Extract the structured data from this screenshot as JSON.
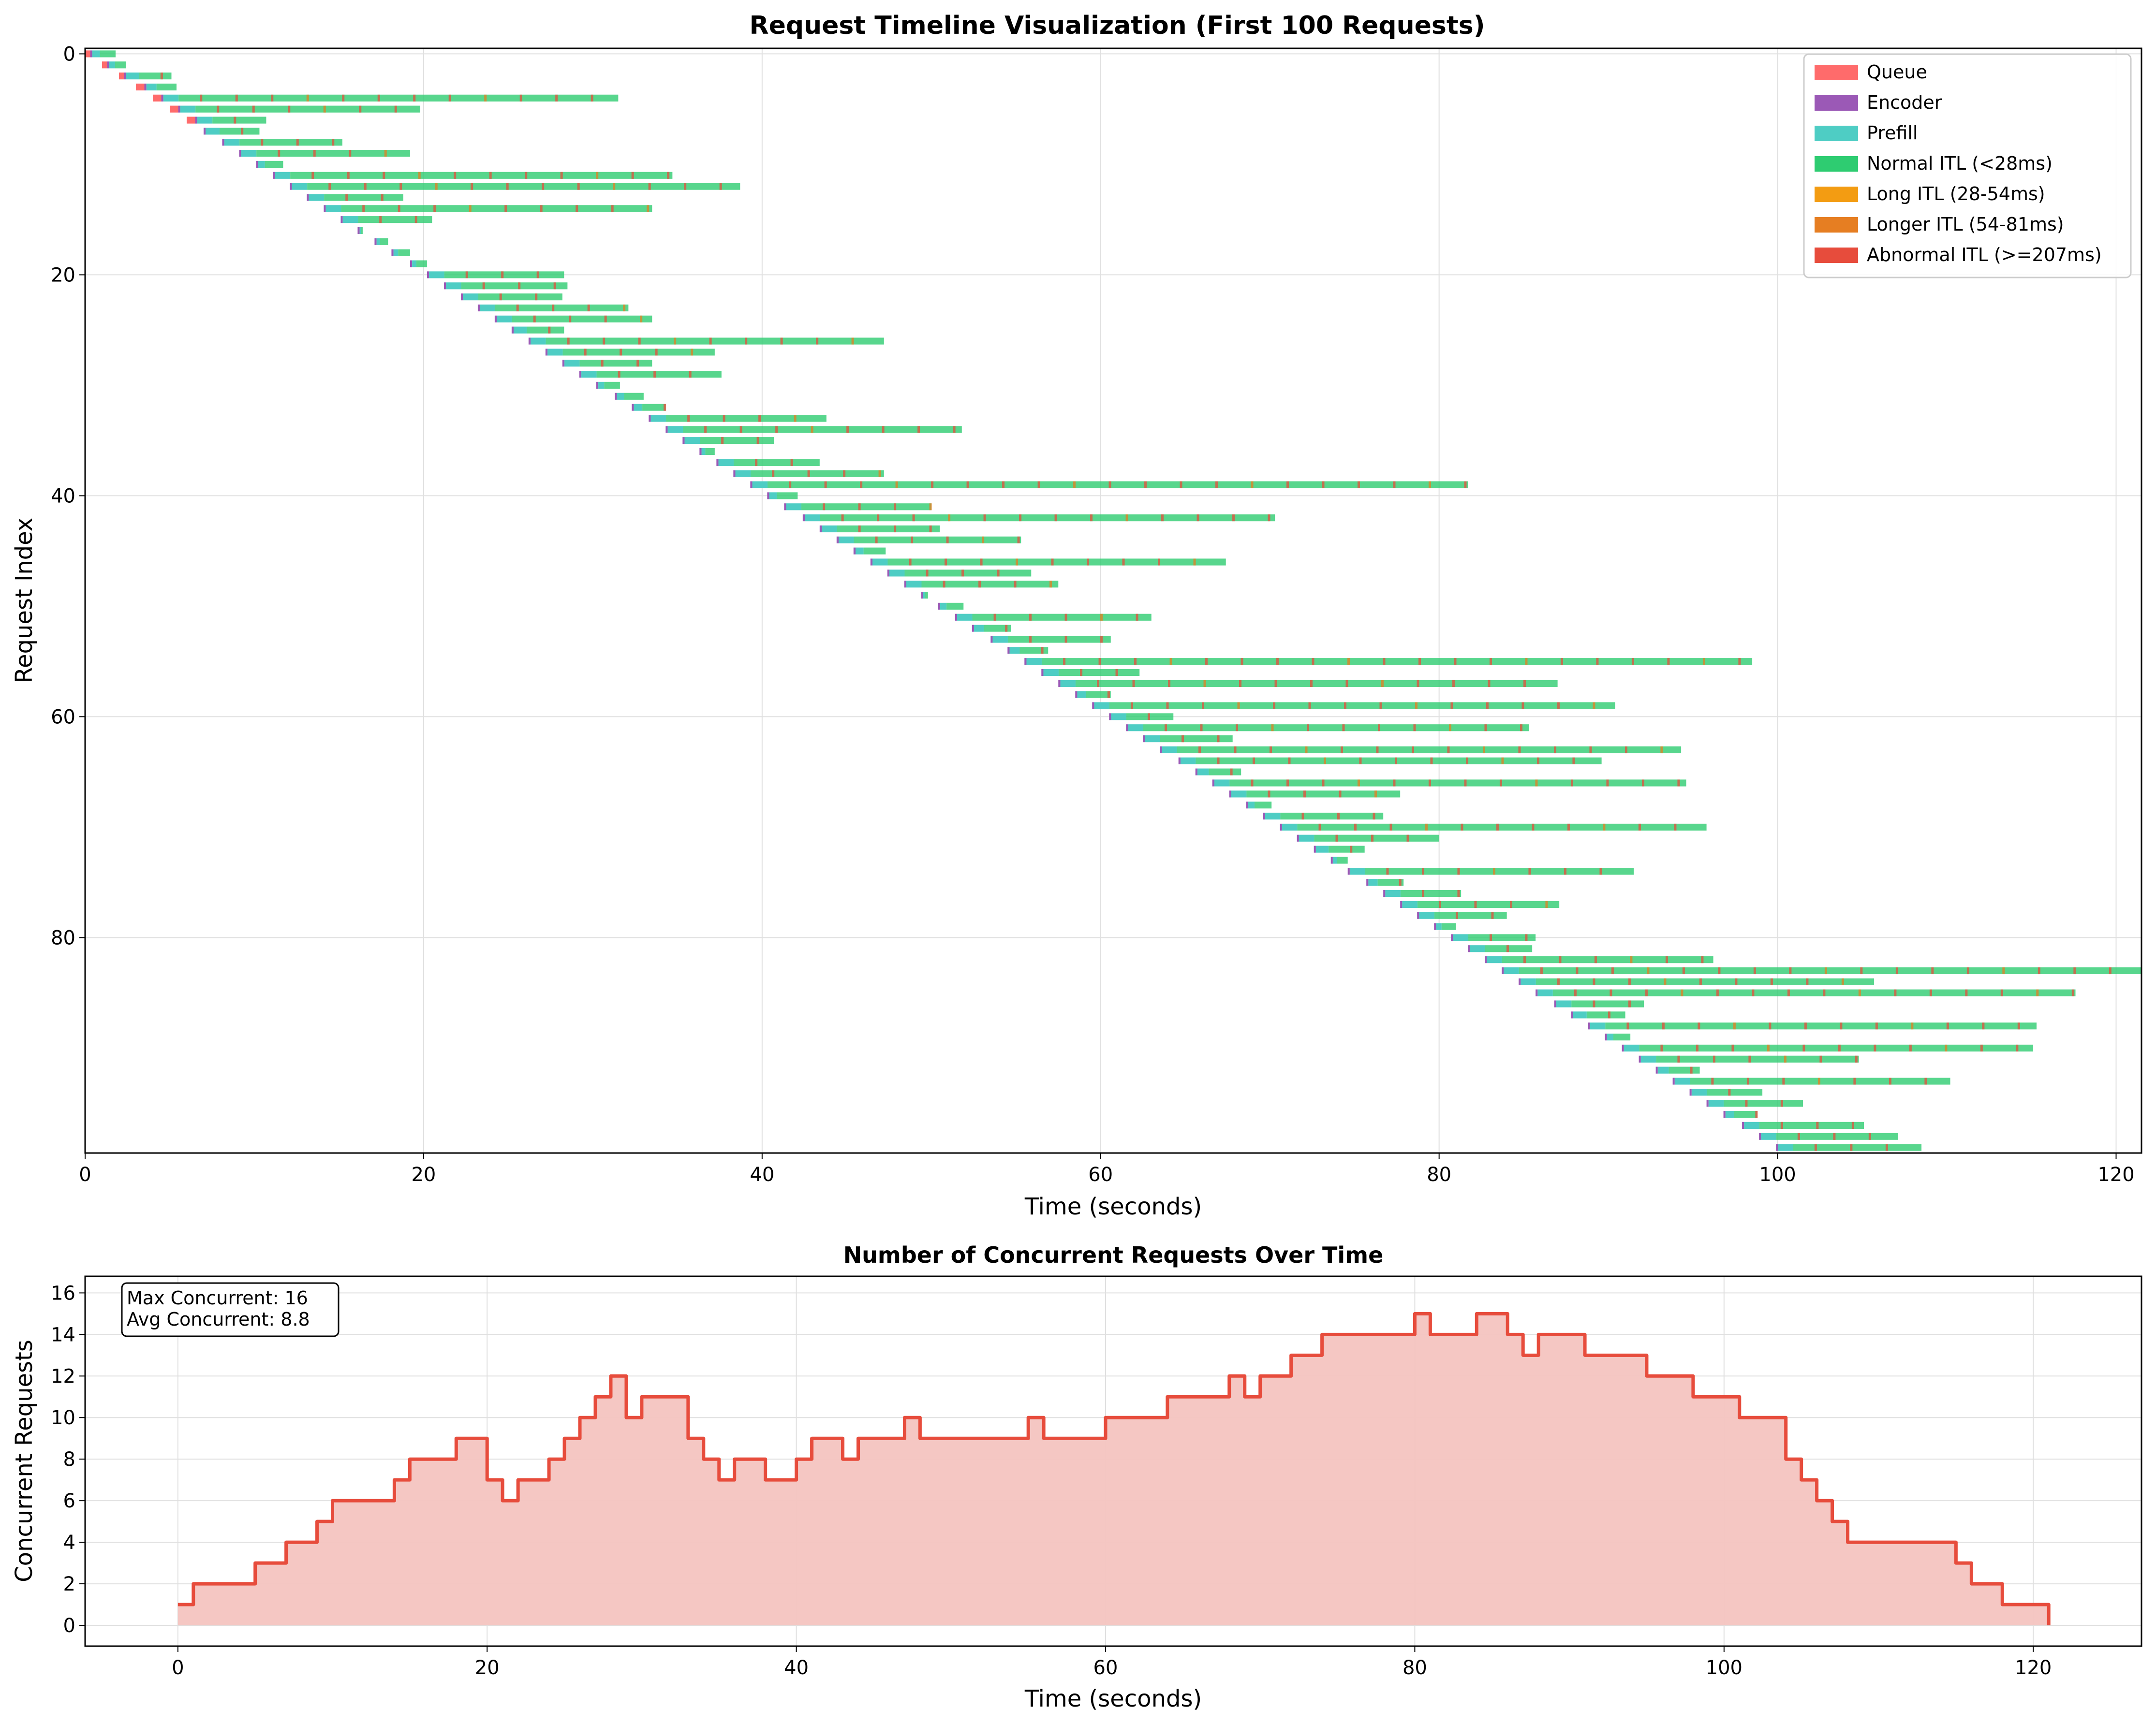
{
  "colors": {
    "queue": "#ff6b6b",
    "encoder": "#9b59b6",
    "prefill": "#4ecdc4",
    "normal_itl": "#2ecc71",
    "long_itl": "#f39c12",
    "longer_itl": "#e67e22",
    "abnormal_itl": "#e74c3c",
    "concurrency_line": "#e74c3c",
    "concurrency_fill": "#f4c4c0",
    "grid": "#e0e0e0"
  },
  "chart_data": [
    {
      "type": "gantt",
      "title": "Request Timeline Visualization (First 100 Requests)",
      "xlabel": "Time (seconds)",
      "ylabel": "Request Index",
      "xlim": [
        0,
        121.5
      ],
      "ylim": [
        99.5,
        -0.5
      ],
      "x_ticks": [
        "0",
        "20",
        "40",
        "60",
        "80",
        "100",
        "120"
      ],
      "y_ticks": [
        "0",
        "20",
        "40",
        "60",
        "80"
      ],
      "grid": true,
      "legend_position": "top-right",
      "legend": [
        {
          "label": "Queue",
          "color_key": "queue"
        },
        {
          "label": "Encoder",
          "color_key": "encoder"
        },
        {
          "label": "Prefill",
          "color_key": "prefill"
        },
        {
          "label": "Normal ITL (<28ms)",
          "color_key": "normal_itl"
        },
        {
          "label": "Long ITL (28-54ms)",
          "color_key": "long_itl"
        },
        {
          "label": "Longer ITL (54-81ms)",
          "color_key": "longer_itl"
        },
        {
          "label": "Abnormal ITL (>=207ms)",
          "color_key": "abnormal_itl"
        }
      ],
      "requests": [
        {
          "index": 0,
          "start": 0.0,
          "end": 1.8
        },
        {
          "index": 1,
          "start": 1.0,
          "end": 2.4
        },
        {
          "index": 2,
          "start": 2.0,
          "end": 5.1
        },
        {
          "index": 3,
          "start": 3.0,
          "end": 5.4
        },
        {
          "index": 4,
          "start": 4.0,
          "end": 31.5
        },
        {
          "index": 5,
          "start": 5.0,
          "end": 19.8
        },
        {
          "index": 6,
          "start": 6.0,
          "end": 10.7
        },
        {
          "index": 7,
          "start": 7.0,
          "end": 10.3
        },
        {
          "index": 8,
          "start": 8.1,
          "end": 15.2
        },
        {
          "index": 9,
          "start": 9.1,
          "end": 19.2
        },
        {
          "index": 10,
          "start": 10.1,
          "end": 11.7
        },
        {
          "index": 11,
          "start": 11.1,
          "end": 34.7
        },
        {
          "index": 12,
          "start": 12.1,
          "end": 38.7
        },
        {
          "index": 13,
          "start": 13.1,
          "end": 18.8
        },
        {
          "index": 14,
          "start": 14.1,
          "end": 33.5
        },
        {
          "index": 15,
          "start": 15.1,
          "end": 20.5
        },
        {
          "index": 16,
          "start": 16.1,
          "end": 16.4
        },
        {
          "index": 17,
          "start": 17.1,
          "end": 17.9
        },
        {
          "index": 18,
          "start": 18.1,
          "end": 19.2
        },
        {
          "index": 19,
          "start": 19.2,
          "end": 20.2
        },
        {
          "index": 20,
          "start": 20.2,
          "end": 28.3
        },
        {
          "index": 21,
          "start": 21.2,
          "end": 28.5
        },
        {
          "index": 22,
          "start": 22.2,
          "end": 28.2
        },
        {
          "index": 23,
          "start": 23.2,
          "end": 32.1
        },
        {
          "index": 24,
          "start": 24.2,
          "end": 33.5
        },
        {
          "index": 25,
          "start": 25.2,
          "end": 28.3
        },
        {
          "index": 26,
          "start": 26.2,
          "end": 47.2
        },
        {
          "index": 27,
          "start": 27.2,
          "end": 37.2
        },
        {
          "index": 28,
          "start": 28.2,
          "end": 33.5
        },
        {
          "index": 29,
          "start": 29.2,
          "end": 37.6
        },
        {
          "index": 30,
          "start": 30.2,
          "end": 31.6
        },
        {
          "index": 31,
          "start": 31.3,
          "end": 33.0
        },
        {
          "index": 32,
          "start": 32.3,
          "end": 34.3
        },
        {
          "index": 33,
          "start": 33.3,
          "end": 43.8
        },
        {
          "index": 34,
          "start": 34.3,
          "end": 51.8
        },
        {
          "index": 35,
          "start": 35.3,
          "end": 40.7
        },
        {
          "index": 36,
          "start": 36.3,
          "end": 37.2
        },
        {
          "index": 37,
          "start": 37.3,
          "end": 43.4
        },
        {
          "index": 38,
          "start": 38.3,
          "end": 47.2
        },
        {
          "index": 39,
          "start": 39.3,
          "end": 81.7
        },
        {
          "index": 40,
          "start": 40.3,
          "end": 42.1
        },
        {
          "index": 41,
          "start": 41.3,
          "end": 50.0
        },
        {
          "index": 42,
          "start": 42.4,
          "end": 70.3
        },
        {
          "index": 43,
          "start": 43.4,
          "end": 50.5
        },
        {
          "index": 44,
          "start": 44.4,
          "end": 55.3
        },
        {
          "index": 45,
          "start": 45.4,
          "end": 47.3
        },
        {
          "index": 46,
          "start": 46.4,
          "end": 67.4
        },
        {
          "index": 47,
          "start": 47.4,
          "end": 55.9
        },
        {
          "index": 48,
          "start": 48.4,
          "end": 57.5
        },
        {
          "index": 49,
          "start": 49.4,
          "end": 49.8
        },
        {
          "index": 50,
          "start": 50.4,
          "end": 51.9
        },
        {
          "index": 51,
          "start": 51.4,
          "end": 63.0
        },
        {
          "index": 52,
          "start": 52.4,
          "end": 54.7
        },
        {
          "index": 53,
          "start": 53.5,
          "end": 60.6
        },
        {
          "index": 54,
          "start": 54.5,
          "end": 56.9
        },
        {
          "index": 55,
          "start": 55.5,
          "end": 98.5
        },
        {
          "index": 56,
          "start": 56.5,
          "end": 62.3
        },
        {
          "index": 57,
          "start": 57.5,
          "end": 87.0
        },
        {
          "index": 58,
          "start": 58.5,
          "end": 60.6
        },
        {
          "index": 59,
          "start": 59.5,
          "end": 90.4
        },
        {
          "index": 60,
          "start": 60.5,
          "end": 64.3
        },
        {
          "index": 61,
          "start": 61.5,
          "end": 85.3
        },
        {
          "index": 62,
          "start": 62.5,
          "end": 67.8
        },
        {
          "index": 63,
          "start": 63.5,
          "end": 94.3
        },
        {
          "index": 64,
          "start": 64.6,
          "end": 89.6
        },
        {
          "index": 65,
          "start": 65.6,
          "end": 68.3
        },
        {
          "index": 66,
          "start": 66.6,
          "end": 94.6
        },
        {
          "index": 67,
          "start": 67.6,
          "end": 77.7
        },
        {
          "index": 68,
          "start": 68.6,
          "end": 70.1
        },
        {
          "index": 69,
          "start": 69.6,
          "end": 76.7
        },
        {
          "index": 70,
          "start": 70.6,
          "end": 95.8
        },
        {
          "index": 71,
          "start": 71.6,
          "end": 80.0
        },
        {
          "index": 72,
          "start": 72.6,
          "end": 75.6
        },
        {
          "index": 73,
          "start": 73.6,
          "end": 74.6
        },
        {
          "index": 74,
          "start": 74.6,
          "end": 91.5
        },
        {
          "index": 75,
          "start": 75.7,
          "end": 77.9
        },
        {
          "index": 76,
          "start": 76.7,
          "end": 81.3
        },
        {
          "index": 77,
          "start": 77.7,
          "end": 87.1
        },
        {
          "index": 78,
          "start": 78.7,
          "end": 84.0
        },
        {
          "index": 79,
          "start": 79.7,
          "end": 81.0
        },
        {
          "index": 80,
          "start": 80.7,
          "end": 85.7
        },
        {
          "index": 81,
          "start": 81.7,
          "end": 85.5
        },
        {
          "index": 82,
          "start": 82.7,
          "end": 96.2
        },
        {
          "index": 83,
          "start": 83.7,
          "end": 121.5
        },
        {
          "index": 84,
          "start": 84.7,
          "end": 105.7
        },
        {
          "index": 85,
          "start": 85.7,
          "end": 117.6
        },
        {
          "index": 86,
          "start": 86.8,
          "end": 92.1
        },
        {
          "index": 87,
          "start": 87.8,
          "end": 91.0
        },
        {
          "index": 88,
          "start": 88.8,
          "end": 115.3
        },
        {
          "index": 89,
          "start": 89.8,
          "end": 91.3
        },
        {
          "index": 90,
          "start": 90.8,
          "end": 115.1
        },
        {
          "index": 91,
          "start": 91.8,
          "end": 104.8
        },
        {
          "index": 92,
          "start": 92.8,
          "end": 95.4
        },
        {
          "index": 93,
          "start": 93.8,
          "end": 110.2
        },
        {
          "index": 94,
          "start": 94.8,
          "end": 99.1
        },
        {
          "index": 95,
          "start": 95.8,
          "end": 101.5
        },
        {
          "index": 96,
          "start": 96.8,
          "end": 98.8
        },
        {
          "index": 97,
          "start": 97.9,
          "end": 105.1
        },
        {
          "index": 98,
          "start": 98.9,
          "end": 107.1
        },
        {
          "index": 99,
          "start": 99.9,
          "end": 108.5
        }
      ]
    },
    {
      "type": "area",
      "title": "Number of Concurrent Requests Over Time",
      "xlabel": "Time (seconds)",
      "ylabel": "Concurrent Requests",
      "xlim": [
        -6,
        127
      ],
      "ylim": [
        -1,
        16.8
      ],
      "x_ticks": [
        "0",
        "20",
        "40",
        "60",
        "80",
        "100",
        "120"
      ],
      "y_ticks": [
        "0",
        "2",
        "4",
        "6",
        "8",
        "10",
        "12",
        "14",
        "16"
      ],
      "grid": true,
      "stats": [
        "Max Concurrent: 16",
        "Avg Concurrent: 8.8"
      ],
      "x": [
        0,
        1,
        2,
        3,
        4,
        5,
        6,
        7,
        8,
        9,
        10,
        11,
        12,
        13,
        14,
        15,
        16,
        17,
        18,
        19,
        20,
        21,
        22,
        23,
        24,
        25,
        26,
        27,
        28,
        29,
        30,
        31,
        32,
        33,
        34,
        35,
        36,
        37,
        38,
        39,
        40,
        41,
        42,
        43,
        44,
        45,
        46,
        47,
        48,
        49,
        50,
        51,
        52,
        53,
        54,
        55,
        56,
        57,
        58,
        59,
        60,
        61,
        62,
        63,
        64,
        65,
        66,
        67,
        68,
        69,
        70,
        71,
        72,
        73,
        74,
        75,
        76,
        77,
        78,
        79,
        80,
        81,
        82,
        83,
        84,
        85,
        86,
        87,
        88,
        89,
        90,
        91,
        92,
        93,
        94,
        95,
        96,
        97,
        98,
        99,
        100,
        101,
        102,
        103,
        104,
        105,
        106,
        107,
        108,
        109,
        110,
        111,
        112,
        113,
        114,
        115,
        116,
        117,
        118,
        119,
        120,
        121
      ],
      "y": [
        1,
        2,
        2,
        2,
        2,
        3,
        3,
        4,
        4,
        5,
        6,
        6,
        6,
        6,
        7,
        8,
        8,
        8,
        9,
        9,
        7,
        6,
        7,
        7,
        8,
        9,
        10,
        11,
        12,
        10,
        11,
        11,
        11,
        9,
        8,
        7,
        8,
        8,
        7,
        7,
        8,
        9,
        9,
        8,
        9,
        9,
        9,
        10,
        9,
        9,
        9,
        9,
        9,
        9,
        9,
        10,
        9,
        9,
        9,
        9,
        10,
        10,
        10,
        10,
        11,
        11,
        11,
        11,
        12,
        11,
        12,
        12,
        13,
        13,
        14,
        14,
        14,
        14,
        14,
        14,
        15,
        14,
        14,
        14,
        15,
        15,
        14,
        13,
        14,
        14,
        14,
        13,
        13,
        13,
        13,
        12,
        12,
        12,
        11,
        11,
        11,
        10,
        10,
        10,
        8,
        7,
        6,
        5,
        4,
        4,
        4,
        4,
        4,
        4,
        4,
        3,
        2,
        2,
        1,
        1,
        1,
        0
      ]
    }
  ]
}
